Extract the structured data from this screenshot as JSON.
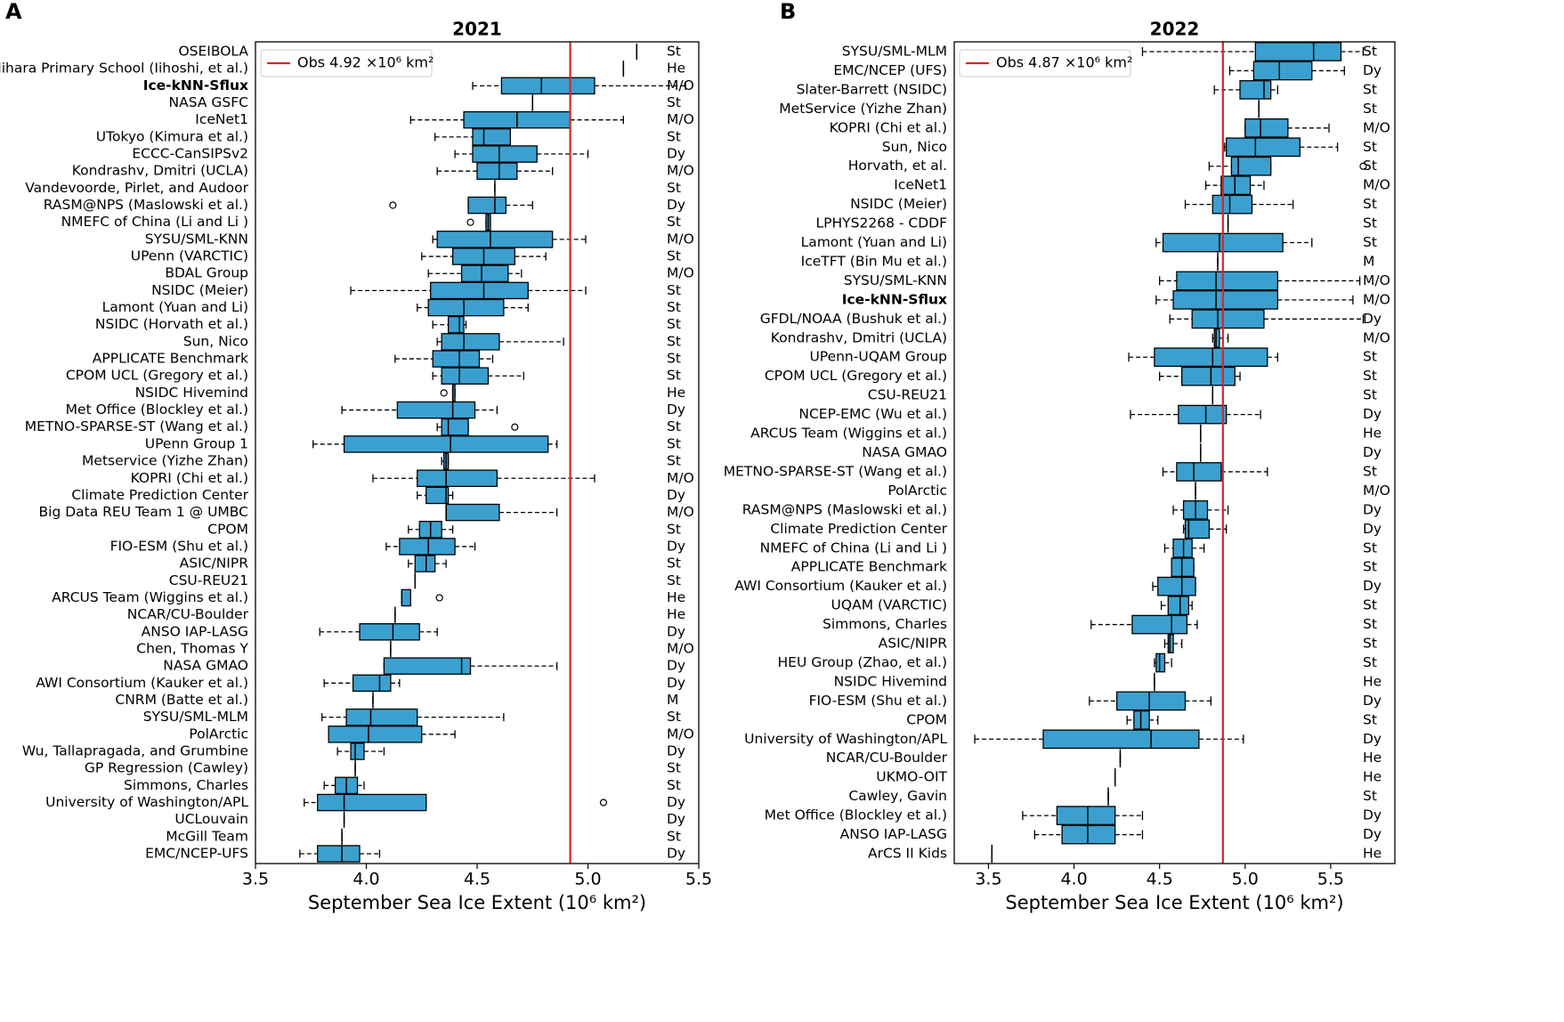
{
  "chart_data": [
    {
      "type": "boxplot",
      "panel": "A",
      "title": "2021",
      "xlabel": "September Sea Ice Extent (10⁶ km²)",
      "xlim": [
        3.5,
        5.5
      ],
      "xticks": [
        3.5,
        {
          "value": 4,
          "label": "4.0"
        },
        4.5,
        {
          "value": 5,
          "label": "5.0"
        },
        5.5
      ],
      "color": "#3ba0cf",
      "highlight": 2,
      "reference": {
        "value": 4.92,
        "label": "Obs 4.92 ×10⁶ km²",
        "color": "#d62728"
      },
      "categories": [
        "OSEIBOLA",
        "Mihara Primary School (Iihoshi, et al.)",
        "Ice-kNN-Sflux",
        "NASA GSFC",
        "IceNet1",
        "UTokyo (Kimura et al.)",
        "ECCC-CanSIPSv2",
        "Kondrashv, Dmitri (UCLA)",
        "Vandevoorde, Pirlet, and Audoor",
        "RASM@NPS (Maslowski et al.)",
        "NMEFC of China (Li and Li )",
        "SYSU/SML-KNN",
        "UPenn (VARCTIC)",
        "BDAL Group",
        "NSIDC (Meier)",
        "Lamont (Yuan and Li)",
        "NSIDC (Horvath et al.)",
        "Sun, Nico",
        "APPLICATE Benchmark",
        "CPOM UCL (Gregory et al.)",
        "NSIDC Hivemind",
        "Met Office (Blockley et al.)",
        "METNO-SPARSE-ST (Wang et al.)",
        "UPenn Group 1",
        "Metservice (Yizhe Zhan)",
        "KOPRI (Chi et al.)",
        "Climate Prediction Center",
        "Big Data REU Team 1 @ UMBC",
        "CPOM",
        "FIO-ESM (Shu et al.)",
        "ASIC/NIPR",
        "CSU-REU21",
        "ARCUS Team (Wiggins et al.)",
        "NCAR/CU-Boulder",
        "ANSO IAP-LASG",
        "Chen, Thomas Y",
        "NASA GMAO",
        "AWI Consortium (Kauker et al.)",
        "CNRM (Batte et al.)",
        "SYSU/SML-MLM",
        "PolArctic",
        "Wu, Tallapragada, and Grumbine",
        "GP Regression (Cawley)",
        "Simmons, Charles",
        "University of Washington/APL",
        "UCLouvain",
        "McGill Team",
        "EMC/NCEP-UFS"
      ],
      "methods": [
        "St",
        "He",
        "M/O",
        "St",
        "M/O",
        "St",
        "Dy",
        "M/O",
        "St",
        "Dy",
        "St",
        "M/O",
        "St",
        "M/O",
        "St",
        "St",
        "St",
        "St",
        "St",
        "St",
        "He",
        "Dy",
        "St",
        "St",
        "St",
        "M/O",
        "Dy",
        "M/O",
        "St",
        "Dy",
        "St",
        "St",
        "He",
        "He",
        "Dy",
        "M/O",
        "Dy",
        "Dy",
        "M",
        "St",
        "M/O",
        "Dy",
        "St",
        "St",
        "Dy",
        "Dy",
        "St",
        "Dy"
      ],
      "boxes": [
        [
          5.22,
          5.22,
          5.22,
          5.22,
          5.22
        ],
        [
          5.16,
          5.16,
          5.16,
          5.16,
          5.16
        ],
        [
          4.48,
          4.61,
          4.79,
          5.03,
          5.44
        ],
        [
          4.75,
          4.75,
          4.75,
          4.75,
          4.75
        ],
        [
          4.2,
          4.44,
          4.68,
          4.92,
          5.16
        ],
        [
          4.31,
          4.48,
          4.53,
          4.65,
          4.65
        ],
        [
          4.4,
          4.48,
          4.6,
          4.77,
          5.0
        ],
        [
          4.32,
          4.5,
          4.6,
          4.68,
          4.84
        ],
        [
          4.58,
          4.58,
          4.58,
          4.58,
          4.58
        ],
        [
          4.46,
          4.46,
          4.58,
          4.63,
          4.75
        ],
        [
          4.54,
          4.54,
          4.55,
          4.56,
          4.56
        ],
        [
          4.3,
          4.32,
          4.56,
          4.84,
          4.99
        ],
        [
          4.25,
          4.39,
          4.53,
          4.67,
          4.81
        ],
        [
          4.28,
          4.43,
          4.52,
          4.64,
          4.7
        ],
        [
          3.93,
          4.29,
          4.53,
          4.73,
          4.99
        ],
        [
          4.23,
          4.28,
          4.44,
          4.62,
          4.73
        ],
        [
          4.3,
          4.37,
          4.42,
          4.44,
          4.45
        ],
        [
          4.32,
          4.34,
          4.44,
          4.6,
          4.89
        ],
        [
          4.13,
          4.3,
          4.42,
          4.51,
          4.57
        ],
        [
          4.3,
          4.34,
          4.42,
          4.55,
          4.71
        ],
        [
          4.39,
          4.39,
          4.39,
          4.4,
          4.4
        ],
        [
          3.89,
          4.14,
          4.39,
          4.49,
          4.59
        ],
        [
          4.32,
          4.34,
          4.37,
          4.46,
          4.46
        ],
        [
          3.76,
          3.9,
          4.38,
          4.82,
          4.86
        ],
        [
          4.34,
          4.35,
          4.36,
          4.37,
          4.37
        ],
        [
          4.03,
          4.23,
          4.36,
          4.59,
          5.03
        ],
        [
          4.23,
          4.27,
          4.36,
          4.37,
          4.39
        ],
        [
          4.36,
          4.36,
          4.36,
          4.6,
          4.86
        ],
        [
          4.19,
          4.24,
          4.29,
          4.34,
          4.39
        ],
        [
          4.09,
          4.15,
          4.28,
          4.4,
          4.49
        ],
        [
          4.19,
          4.22,
          4.27,
          4.31,
          4.36
        ],
        [
          4.22,
          4.22,
          4.22,
          4.22,
          4.22
        ],
        [
          4.16,
          4.16,
          4.16,
          4.2,
          4.2
        ],
        [
          4.13,
          4.13,
          4.13,
          4.13,
          4.13
        ],
        [
          3.79,
          3.97,
          4.12,
          4.24,
          4.32
        ],
        [
          4.11,
          4.11,
          4.11,
          4.11,
          4.11
        ],
        [
          4.08,
          4.08,
          4.43,
          4.47,
          4.86
        ],
        [
          3.81,
          3.94,
          4.06,
          4.11,
          4.15
        ],
        [
          4.03,
          4.03,
          4.03,
          4.03,
          4.03
        ],
        [
          3.8,
          3.91,
          4.02,
          4.23,
          4.62
        ],
        [
          3.83,
          3.83,
          4.01,
          4.25,
          4.4
        ],
        [
          3.87,
          3.93,
          3.95,
          3.99,
          4.08
        ],
        [
          3.95,
          3.95,
          3.95,
          3.95,
          3.95
        ],
        [
          3.81,
          3.86,
          3.91,
          3.96,
          3.99
        ],
        [
          3.72,
          3.78,
          3.9,
          4.27,
          4.27
        ],
        [
          3.9,
          3.9,
          3.9,
          3.9,
          3.9
        ],
        [
          3.89,
          3.89,
          3.89,
          3.89,
          3.89
        ],
        [
          3.7,
          3.78,
          3.89,
          3.97,
          4.06
        ]
      ],
      "outliers": [
        [],
        [],
        [],
        [],
        [],
        [],
        [],
        [],
        [],
        [
          4.12
        ],
        [
          4.47
        ],
        [],
        [],
        [],
        [],
        [],
        [],
        [],
        [],
        [],
        [
          4.35
        ],
        [],
        [
          4.67
        ],
        [],
        [],
        [],
        [],
        [],
        [],
        [],
        [],
        [],
        [
          4.33
        ],
        [],
        [],
        [],
        [],
        [],
        [],
        [],
        [],
        [],
        [],
        [],
        [
          5.07
        ],
        [],
        [],
        []
      ]
    },
    {
      "type": "boxplot",
      "panel": "B",
      "title": "2022",
      "xlabel": "September Sea Ice Extent (10⁶ km²)",
      "xlim": [
        3.3,
        5.875
      ],
      "xticks": [
        3.5,
        {
          "value": 4,
          "label": "4.0"
        },
        4.5,
        {
          "value": 5,
          "label": "5.0"
        },
        5.5
      ],
      "color": "#3ba0cf",
      "highlight": 13,
      "reference": {
        "value": 4.87,
        "label": "Obs 4.87 ×10⁶ km²",
        "color": "#d62728"
      },
      "categories": [
        "SYSU/SML-MLM",
        "EMC/NCEP (UFS)",
        "Slater-Barrett (NSIDC)",
        "MetService (Yizhe Zhan)",
        "KOPRI (Chi et al.)",
        "Sun, Nico",
        "Horvath, et al.",
        "IceNet1",
        "NSIDC (Meier)",
        "LPHYS2268 - CDDF",
        "Lamont (Yuan and Li)",
        "IceTFT (Bin Mu et al.)",
        "SYSU/SML-KNN",
        "Ice-kNN-Sflux",
        "GFDL/NOAA (Bushuk et al.)",
        "Kondrashv, Dmitri (UCLA)",
        "UPenn-UQAM Group",
        "CPOM UCL (Gregory et al.)",
        "CSU-REU21",
        "NCEP-EMC (Wu et al.)",
        "ARCUS Team (Wiggins et al.)",
        "NASA GMAO",
        "METNO-SPARSE-ST (Wang et al.)",
        "PolArctic",
        "RASM@NPS (Maslowski et al.)",
        "Climate Prediction Center",
        "NMEFC of China (Li and Li )",
        "APPLICATE Benchmark",
        "AWI Consortium (Kauker et al.)",
        "UQAM (VARCTIC)",
        "Simmons, Charles",
        "ASIC/NIPR",
        "HEU Group (Zhao, et al.)",
        "NSIDC Hivemind",
        "FIO-ESM (Shu et al.)",
        "CPOM",
        "University of Washington/APL",
        "NCAR/CU-Boulder",
        "UKMO-OIT",
        "Cawley, Gavin",
        "Met Office (Blockley et al.)",
        "ANSO IAP-LASG",
        "ArCS II Kids"
      ],
      "methods": [
        "St",
        "Dy",
        "St",
        "St",
        "M/O",
        "St",
        "St",
        "M/O",
        "St",
        "St",
        "St",
        "M",
        "M/O",
        "M/O",
        "Dy",
        "M/O",
        "St",
        "St",
        "St",
        "Dy",
        "He",
        "Dy",
        "St",
        "M/O",
        "Dy",
        "Dy",
        "St",
        "St",
        "Dy",
        "St",
        "St",
        "St",
        "St",
        "He",
        "Dy",
        "St",
        "Dy",
        "He",
        "He",
        "St",
        "Dy",
        "Dy",
        "He"
      ],
      "boxes": [
        [
          4.4,
          5.06,
          5.4,
          5.56,
          5.69
        ],
        [
          4.91,
          5.05,
          5.2,
          5.39,
          5.58
        ],
        [
          4.82,
          4.97,
          5.11,
          5.15,
          5.19
        ],
        [
          5.08,
          5.08,
          5.08,
          5.08,
          5.08
        ],
        [
          5.0,
          5.0,
          5.09,
          5.25,
          5.49
        ],
        [
          4.88,
          4.89,
          5.06,
          5.32,
          5.54
        ],
        [
          4.79,
          4.92,
          4.96,
          5.15,
          5.15
        ],
        [
          4.77,
          4.86,
          4.94,
          5.03,
          5.11
        ],
        [
          4.65,
          4.81,
          4.91,
          5.04,
          5.28
        ],
        [
          4.9,
          4.9,
          4.9,
          4.9,
          4.9
        ],
        [
          4.48,
          4.52,
          4.85,
          5.22,
          5.39
        ],
        [
          4.84,
          4.84,
          4.84,
          4.84,
          4.84
        ],
        [
          4.5,
          4.6,
          4.83,
          5.19,
          5.67
        ],
        [
          4.48,
          4.58,
          4.83,
          5.19,
          5.63
        ],
        [
          4.56,
          4.69,
          4.84,
          5.11,
          5.69
        ],
        [
          4.81,
          4.82,
          4.83,
          4.85,
          4.9
        ],
        [
          4.32,
          4.47,
          4.81,
          5.13,
          5.19
        ],
        [
          4.5,
          4.63,
          4.8,
          4.94,
          4.97
        ],
        [
          4.81,
          4.81,
          4.81,
          4.81,
          4.81
        ],
        [
          4.33,
          4.61,
          4.77,
          4.89,
          5.09
        ],
        [
          4.74,
          4.74,
          4.74,
          4.74,
          4.74
        ],
        [
          4.74,
          4.74,
          4.74,
          4.74,
          4.74
        ],
        [
          4.52,
          4.6,
          4.7,
          4.86,
          5.13
        ],
        [
          4.71,
          4.71,
          4.71,
          4.71,
          4.71
        ],
        [
          4.58,
          4.64,
          4.71,
          4.78,
          4.9
        ],
        [
          4.64,
          4.65,
          4.67,
          4.79,
          4.89
        ],
        [
          4.53,
          4.58,
          4.64,
          4.69,
          4.76
        ],
        [
          4.57,
          4.57,
          4.63,
          4.7,
          4.7
        ],
        [
          4.46,
          4.49,
          4.63,
          4.71,
          4.71
        ],
        [
          4.51,
          4.55,
          4.62,
          4.67,
          4.69
        ],
        [
          4.1,
          4.34,
          4.57,
          4.66,
          4.72
        ],
        [
          4.53,
          4.55,
          4.56,
          4.58,
          4.63
        ],
        [
          4.47,
          4.48,
          4.5,
          4.53,
          4.57
        ],
        [
          4.47,
          4.47,
          4.47,
          4.47,
          4.47
        ],
        [
          4.09,
          4.25,
          4.44,
          4.65,
          4.8
        ],
        [
          4.31,
          4.35,
          4.39,
          4.44,
          4.49
        ],
        [
          3.42,
          3.82,
          4.45,
          4.73,
          4.99
        ],
        [
          4.27,
          4.27,
          4.27,
          4.27,
          4.27
        ],
        [
          4.24,
          4.24,
          4.24,
          4.24,
          4.24
        ],
        [
          4.2,
          4.2,
          4.2,
          4.2,
          4.2
        ],
        [
          3.7,
          3.9,
          4.08,
          4.24,
          4.4
        ],
        [
          3.77,
          3.93,
          4.08,
          4.24,
          4.4
        ],
        [
          3.52,
          3.52,
          3.52,
          3.52,
          3.52
        ]
      ],
      "outliers": [
        [],
        [],
        [],
        [],
        [],
        [],
        [
          5.69
        ],
        [],
        [],
        [],
        [],
        [],
        [],
        [],
        [],
        [],
        [],
        [],
        [],
        [],
        [],
        [],
        [],
        [],
        [],
        [],
        [],
        [],
        [],
        [],
        [],
        [],
        [],
        [],
        [],
        [],
        [],
        [],
        [],
        [],
        [],
        [],
        []
      ]
    }
  ]
}
